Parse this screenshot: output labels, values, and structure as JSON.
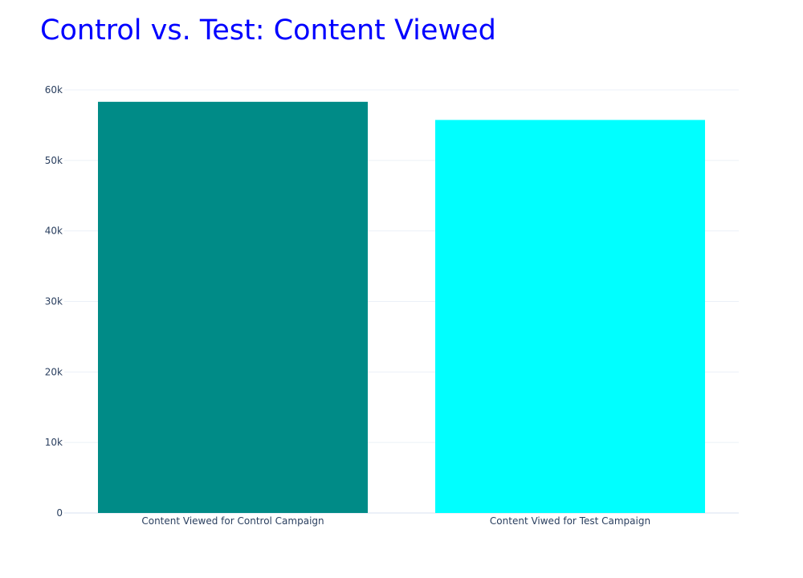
{
  "chart_data": {
    "type": "bar",
    "title": "Control vs. Test: Content Viewed",
    "title_color": "#0000ff",
    "categories": [
      "Content Viewed for Control Campaign",
      "Content Viwed for Test Campaign"
    ],
    "values": [
      58313,
      55740
    ],
    "bar_colors": [
      "#008b87",
      "#00ffff"
    ],
    "ylim": [
      0,
      60000
    ],
    "yticks": [
      0,
      10000,
      20000,
      30000,
      40000,
      50000,
      60000
    ],
    "ytick_labels": [
      "0",
      "10k",
      "20k",
      "30k",
      "40k",
      "50k",
      "60k"
    ],
    "xlabel": "",
    "ylabel": "",
    "grid": true,
    "legend": false
  }
}
